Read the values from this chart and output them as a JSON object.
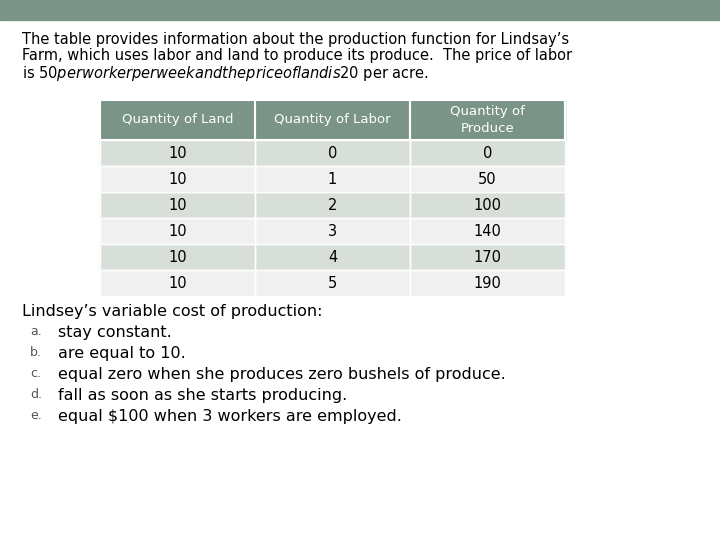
{
  "intro_text_lines": [
    "The table provides information about the production function for Lindsay’s",
    "Farm, which uses labor and land to produce its produce.  The price of labor",
    "is $50 per worker per week and the price of land is $20 per acre."
  ],
  "header": [
    "Quantity of Land",
    "Quantity of Labor",
    "Quantity of\nProduce"
  ],
  "rows": [
    [
      10,
      0,
      0
    ],
    [
      10,
      1,
      50
    ],
    [
      10,
      2,
      100
    ],
    [
      10,
      3,
      140
    ],
    [
      10,
      4,
      170
    ],
    [
      10,
      5,
      190
    ]
  ],
  "question_text": "Lindsey’s variable cost of production:",
  "options": [
    [
      "a.",
      "stay constant."
    ],
    [
      "b.",
      "are equal to 10."
    ],
    [
      "c.",
      "equal zero when she produces zero bushels of produce."
    ],
    [
      "d.",
      "fall as soon as she starts producing."
    ],
    [
      "e.",
      "equal $100 when 3 workers are employed."
    ]
  ],
  "header_bg": "#7a9488",
  "row_bg_even": "#d8dfd8",
  "row_bg_odd": "#f0f0f0",
  "top_bar_color": "#7a9488",
  "background_color": "#ffffff",
  "text_color": "#000000",
  "header_text_color": "#ffffff",
  "header_fontsize": 9.5,
  "body_fontsize": 10.5,
  "intro_fontsize": 10.5,
  "question_fontsize": 11.5,
  "option_label_fontsize": 9,
  "option_text_fontsize": 11.5
}
